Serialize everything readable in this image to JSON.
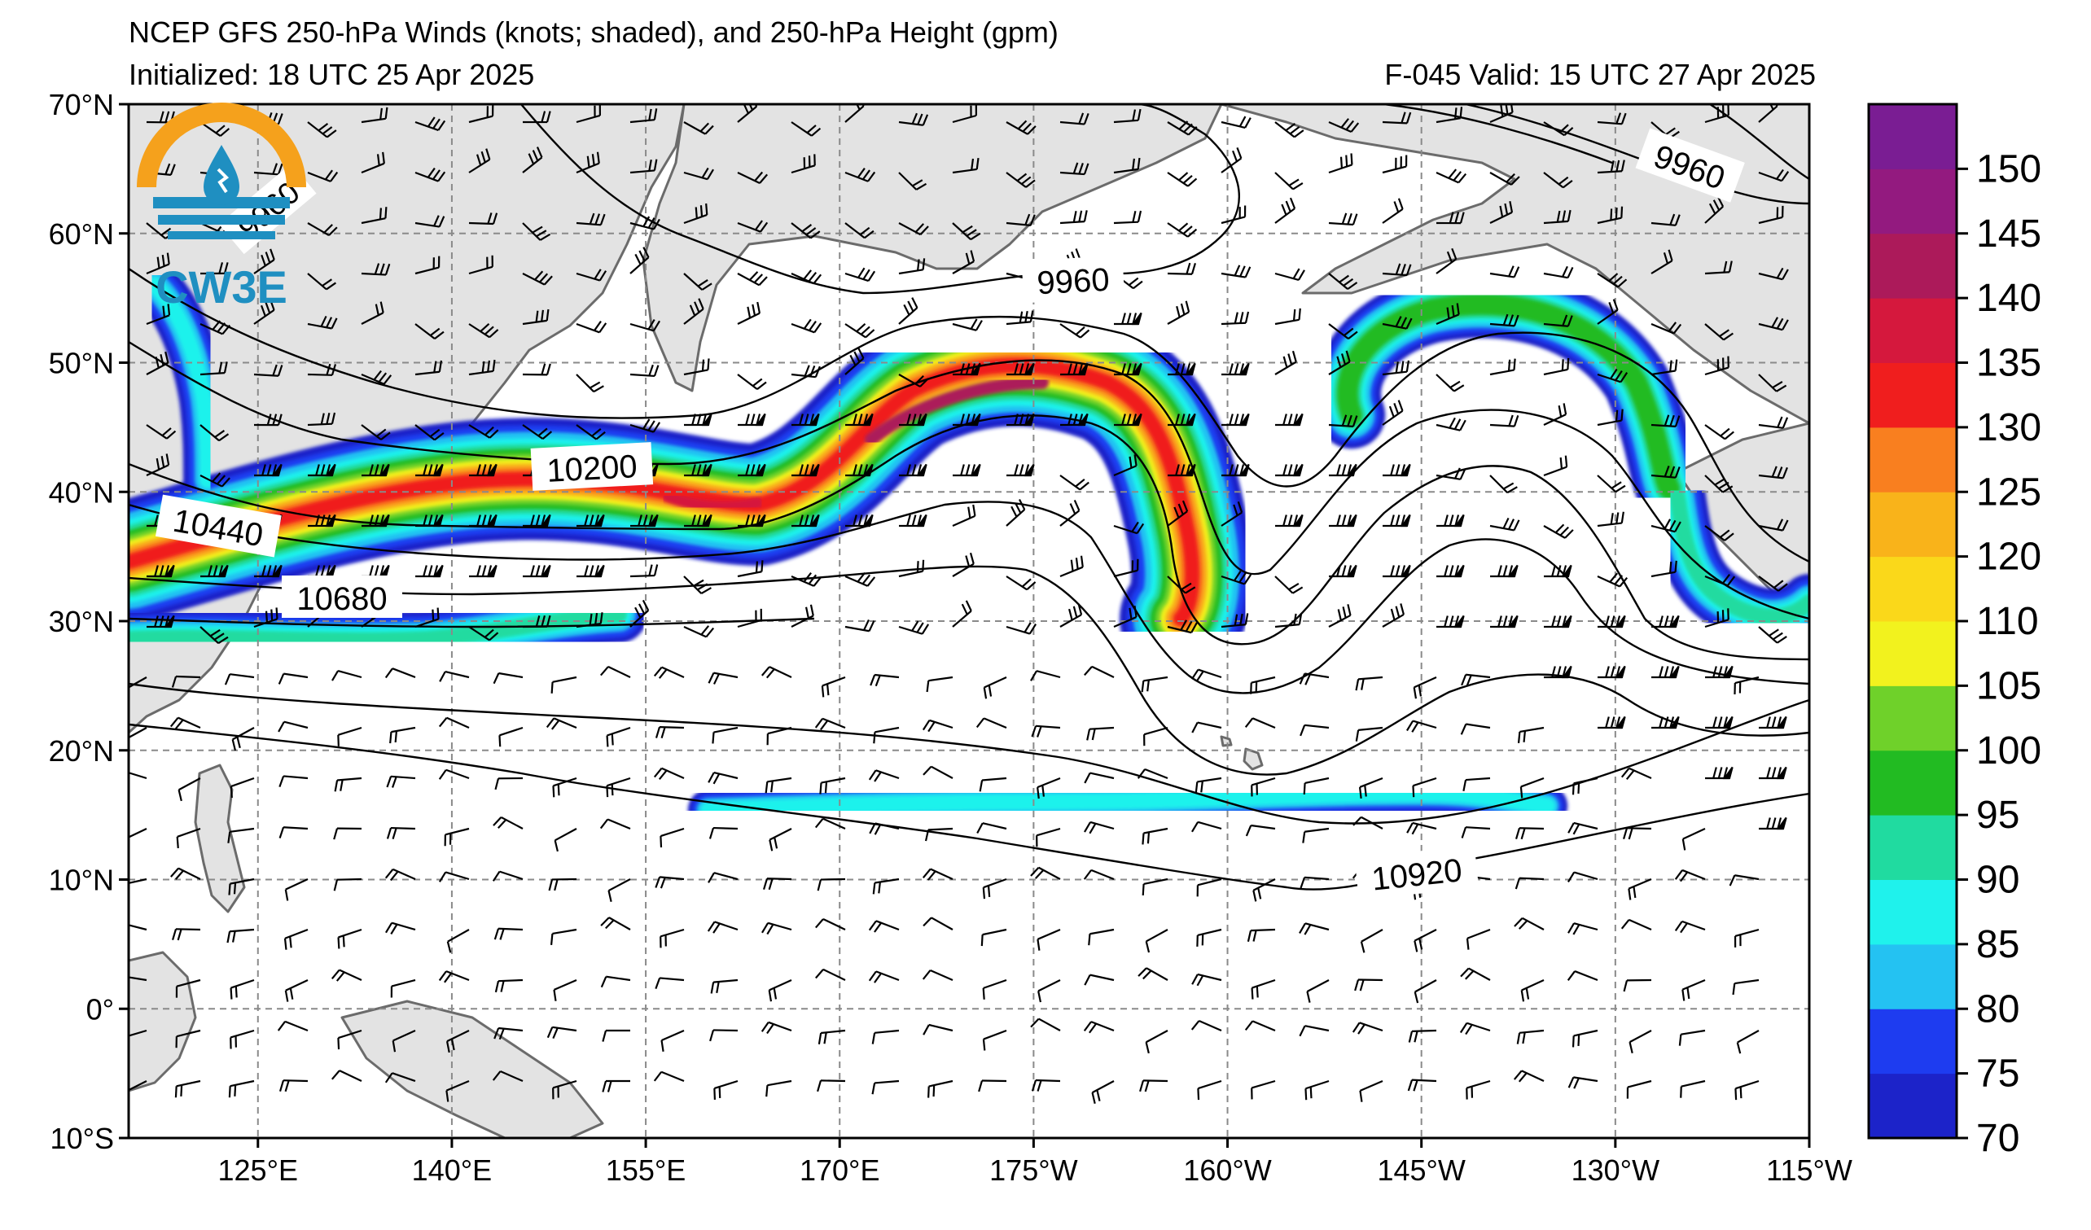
{
  "header": {
    "title": "NCEP GFS 250-hPa Winds (knots; shaded), and 250-hPa Height (gpm)",
    "initialized": "Initialized: 18 UTC 25 Apr 2025",
    "valid": "F-045  Valid: 15 UTC 27 Apr 2025"
  },
  "logo": {
    "text": "CW3E",
    "colors": [
      "#f5a11c",
      "#1f8fc1",
      "#0e5f8a"
    ]
  },
  "axes": {
    "lat_labels": [
      "70°N",
      "60°N",
      "50°N",
      "40°N",
      "30°N",
      "20°N",
      "10°N",
      "0°",
      "10°S"
    ],
    "lon_labels": [
      "125°E",
      "140°E",
      "155°E",
      "170°E",
      "175°W",
      "160°W",
      "145°W",
      "130°W",
      "115°W"
    ],
    "lat_range": [
      -10,
      70
    ],
    "lon_range_east": [
      115,
      245
    ]
  },
  "contour_labels": [
    "9960",
    "9960",
    "10200",
    "10440",
    "10680",
    "10920",
    "9960"
  ],
  "colorbar": {
    "labels": [
      "70",
      "75",
      "80",
      "85",
      "90",
      "95",
      "100",
      "105",
      "110",
      "120",
      "125",
      "130",
      "135",
      "140",
      "145",
      "150"
    ],
    "colors": [
      "#1c23c9",
      "#1e3cf0",
      "#24c2f2",
      "#1ff2ec",
      "#20dba0",
      "#22bb22",
      "#6fd12a",
      "#f2f21e",
      "#fad81a",
      "#f9b31a",
      "#f97f1f",
      "#f01e1e",
      "#d5183d",
      "#ac1a5a",
      "#931a7f",
      "#7a1d93"
    ]
  },
  "land_color": "#e3e3e3",
  "coast_color": "#6b6b6b"
}
